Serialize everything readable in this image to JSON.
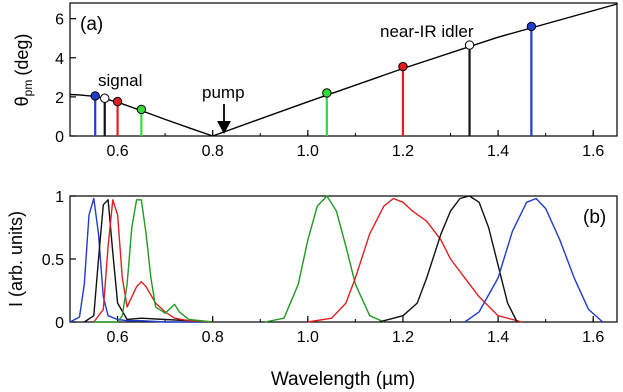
{
  "chart_data": [
    {
      "panel_label": "(a)",
      "type": "line",
      "ylabel_main": "θ",
      "ylabel_sub": "pm",
      "ylabel_unit": "(deg)",
      "xlim": [
        0.5,
        1.65
      ],
      "ylim": [
        0,
        6.8
      ],
      "xticks": [
        0.6,
        0.8,
        1.0,
        1.2,
        1.4,
        1.6
      ],
      "xtick_labels": [
        "0.6",
        "0.8",
        "1.0",
        "1.2",
        "1.4",
        "1.6"
      ],
      "yticks": [
        0,
        2,
        4,
        6
      ],
      "ytick_labels": [
        "0",
        "2",
        "4",
        "6"
      ],
      "curve_left": {
        "x": [
          0.5,
          0.52,
          0.55,
          0.57,
          0.6,
          0.65,
          0.7,
          0.75,
          0.8
        ],
        "y": [
          2.12,
          2.1,
          2.03,
          1.93,
          1.73,
          1.3,
          0.85,
          0.42,
          0.0
        ]
      },
      "curve_right": {
        "x": [
          0.8,
          1.0,
          1.2,
          1.4,
          1.65
        ],
        "y": [
          0.0,
          1.75,
          3.45,
          5.05,
          6.75
        ]
      },
      "stems": [
        {
          "x": 0.553,
          "y": 2.05,
          "color": "#1f3ccc",
          "filled": true
        },
        {
          "x": 0.573,
          "y": 1.93,
          "color": "#111111",
          "filled": false
        },
        {
          "x": 0.6,
          "y": 1.76,
          "color": "#e02020",
          "filled": true
        },
        {
          "x": 0.65,
          "y": 1.36,
          "color": "#33dd33",
          "filled": true
        },
        {
          "x": 1.04,
          "y": 2.2,
          "color": "#33dd33",
          "filled": true
        },
        {
          "x": 1.2,
          "y": 3.55,
          "color": "#e02020",
          "filled": true
        },
        {
          "x": 1.34,
          "y": 4.65,
          "color": "#111111",
          "filled": false
        },
        {
          "x": 1.47,
          "y": 5.6,
          "color": "#1f3ccc",
          "filled": true
        }
      ],
      "annotations": [
        {
          "text": "signal"
        },
        {
          "text": "pump"
        },
        {
          "text": "near-IR idler"
        }
      ]
    },
    {
      "panel_label": "(b)",
      "type": "line",
      "xlabel": "Wavelength (µm)",
      "ylabel": "I (arb. units)",
      "xlim": [
        0.5,
        1.65
      ],
      "ylim": [
        0,
        1.0
      ],
      "xticks": [
        0.6,
        0.8,
        1.0,
        1.2,
        1.4,
        1.6
      ],
      "xtick_labels": [
        "0.6",
        "0.8",
        "1.0",
        "1.2",
        "1.4",
        "1.6"
      ],
      "yticks": [
        0,
        0.5,
        1
      ],
      "ytick_labels": [
        "0",
        "0.5",
        "1"
      ],
      "series": [
        {
          "color": "#1f3ccc",
          "x": [
            0.5,
            0.52,
            0.53,
            0.54,
            0.55,
            0.56,
            0.57,
            0.58,
            0.6,
            0.62,
            0.65,
            0.7,
            0.8
          ],
          "y": [
            0.0,
            0.04,
            0.3,
            0.85,
            0.98,
            0.7,
            0.2,
            0.05,
            0.02,
            0.01,
            0.01,
            0.0,
            0.0
          ]
        },
        {
          "color": "#111111",
          "x": [
            0.53,
            0.55,
            0.56,
            0.57,
            0.58,
            0.59,
            0.6,
            0.62,
            0.65,
            0.7,
            0.75,
            0.8
          ],
          "y": [
            0.0,
            0.05,
            0.5,
            0.93,
            0.97,
            0.55,
            0.15,
            0.02,
            0.03,
            0.02,
            0.01,
            0.0
          ]
        },
        {
          "color": "#e02020",
          "x": [
            0.55,
            0.57,
            0.58,
            0.59,
            0.6,
            0.61,
            0.62,
            0.64,
            0.65,
            0.66,
            0.68,
            0.7,
            0.72,
            0.75,
            0.8
          ],
          "y": [
            0.0,
            0.1,
            0.6,
            0.97,
            0.85,
            0.35,
            0.12,
            0.28,
            0.32,
            0.28,
            0.15,
            0.08,
            0.03,
            0.01,
            0.0
          ]
        },
        {
          "color": "#229922",
          "x": [
            0.55,
            0.6,
            0.61,
            0.62,
            0.63,
            0.64,
            0.65,
            0.66,
            0.67,
            0.68,
            0.7,
            0.72,
            0.73,
            0.75,
            0.8
          ],
          "y": [
            0.0,
            0.0,
            0.05,
            0.3,
            0.75,
            0.97,
            0.97,
            0.7,
            0.35,
            0.12,
            0.07,
            0.14,
            0.08,
            0.02,
            0.0
          ]
        },
        {
          "color": "#229922",
          "x": [
            0.91,
            0.95,
            0.98,
            1.0,
            1.02,
            1.04,
            1.06,
            1.08,
            1.1,
            1.13,
            1.16
          ],
          "y": [
            0.0,
            0.03,
            0.3,
            0.65,
            0.92,
            1.0,
            0.88,
            0.6,
            0.3,
            0.05,
            0.0
          ]
        },
        {
          "color": "#e02020",
          "x": [
            1.0,
            1.05,
            1.08,
            1.1,
            1.13,
            1.16,
            1.18,
            1.2,
            1.22,
            1.25,
            1.28,
            1.3,
            1.33,
            1.36,
            1.4,
            1.45
          ],
          "y": [
            0.0,
            0.03,
            0.15,
            0.35,
            0.7,
            0.92,
            0.98,
            0.95,
            0.88,
            0.8,
            0.65,
            0.5,
            0.35,
            0.2,
            0.05,
            0.0
          ]
        },
        {
          "color": "#111111",
          "x": [
            1.15,
            1.2,
            1.23,
            1.25,
            1.28,
            1.3,
            1.32,
            1.34,
            1.36,
            1.38,
            1.4,
            1.42,
            1.44
          ],
          "y": [
            0.0,
            0.05,
            0.15,
            0.35,
            0.7,
            0.88,
            0.98,
            1.0,
            0.95,
            0.75,
            0.45,
            0.15,
            0.0
          ]
        },
        {
          "color": "#1f3ccc",
          "x": [
            1.33,
            1.36,
            1.4,
            1.43,
            1.46,
            1.48,
            1.5,
            1.53,
            1.56,
            1.59,
            1.62
          ],
          "y": [
            0.0,
            0.08,
            0.35,
            0.72,
            0.95,
            0.98,
            0.9,
            0.65,
            0.35,
            0.1,
            0.0
          ]
        }
      ]
    }
  ]
}
